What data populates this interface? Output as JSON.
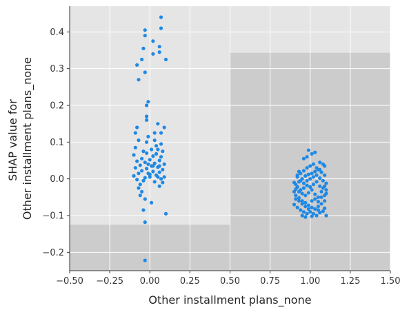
{
  "chart_data": {
    "type": "scatter",
    "title": "",
    "xlabel": "Other installment plans_none",
    "ylabel_lines": [
      "SHAP value for",
      "Other installment plans_none"
    ],
    "xlim": [
      -0.5,
      1.5
    ],
    "ylim": [
      -0.25,
      0.47
    ],
    "xticks": [
      -0.5,
      -0.25,
      0.0,
      0.25,
      0.5,
      0.75,
      1.0,
      1.25,
      1.5
    ],
    "xtick_labels": [
      "−0.50",
      "−0.25",
      "0.00",
      "0.25",
      "0.50",
      "0.75",
      "1.00",
      "1.25",
      "1.50"
    ],
    "yticks": [
      -0.2,
      -0.1,
      0.0,
      0.1,
      0.2,
      0.3,
      0.4
    ],
    "ytick_labels": [
      "−0.2",
      "−0.1",
      "0.0",
      "0.1",
      "0.2",
      "0.3",
      "0.4"
    ],
    "grid": true,
    "background_regions": [
      {
        "x": [
          -0.5,
          0.5
        ],
        "y": [
          -0.25,
          -0.125
        ],
        "shade": "dark"
      },
      {
        "x": [
          0.5,
          1.5
        ],
        "y": [
          -0.25,
          0.343
        ],
        "shade": "dark"
      }
    ],
    "colors": {
      "points": "#1e88e5",
      "panel": "#e5e5e5",
      "dark_region": "#cccccc",
      "grid": "#ffffff",
      "axis": "#333333"
    },
    "series": [
      {
        "values": [
          [
            -0.03,
            0.405
          ],
          [
            0.07,
            0.44
          ],
          [
            -0.03,
            0.39
          ],
          [
            0.07,
            0.41
          ],
          [
            0.02,
            0.375
          ],
          [
            0.06,
            0.36
          ],
          [
            -0.04,
            0.355
          ],
          [
            0.06,
            0.345
          ],
          [
            0.02,
            0.34
          ],
          [
            -0.05,
            0.325
          ],
          [
            0.1,
            0.325
          ],
          [
            -0.08,
            0.31
          ],
          [
            -0.03,
            0.29
          ],
          [
            -0.07,
            0.27
          ],
          [
            -0.01,
            0.21
          ],
          [
            -0.02,
            0.2
          ],
          [
            -0.02,
            0.17
          ],
          [
            -0.02,
            0.16
          ],
          [
            0.05,
            0.15
          ],
          [
            -0.08,
            0.14
          ],
          [
            0.09,
            0.14
          ],
          [
            -0.09,
            0.125
          ],
          [
            0.03,
            0.125
          ],
          [
            0.07,
            0.125
          ],
          [
            -0.01,
            0.115
          ],
          [
            -0.07,
            0.105
          ],
          [
            -0.02,
            0.1
          ],
          [
            0.07,
            0.095
          ],
          [
            0.04,
            0.09
          ],
          [
            -0.09,
            0.085
          ],
          [
            0.01,
            0.08
          ],
          [
            0.05,
            0.08
          ],
          [
            0.08,
            0.075
          ],
          [
            -0.02,
            0.07
          ],
          [
            0.04,
            0.068
          ],
          [
            -0.1,
            0.065
          ],
          [
            0.02,
            0.062
          ],
          [
            0.07,
            0.06
          ],
          [
            -0.05,
            0.055
          ],
          [
            0.0,
            0.052
          ],
          [
            0.06,
            0.05
          ],
          [
            -0.08,
            0.048
          ],
          [
            -0.03,
            0.045
          ],
          [
            0.03,
            0.042
          ],
          [
            0.09,
            0.04
          ],
          [
            -0.06,
            0.037
          ],
          [
            0.01,
            0.035
          ],
          [
            0.05,
            0.032
          ],
          [
            -0.09,
            0.03
          ],
          [
            -0.02,
            0.028
          ],
          [
            0.08,
            0.025
          ],
          [
            -0.05,
            0.022
          ],
          [
            0.02,
            0.02
          ],
          [
            0.06,
            0.018
          ],
          [
            -0.07,
            0.015
          ],
          [
            0.0,
            0.012
          ],
          [
            0.04,
            0.01
          ],
          [
            -0.1,
            0.008
          ],
          [
            0.09,
            0.005
          ],
          [
            -0.03,
            0.003
          ],
          [
            0.07,
            0.0
          ],
          [
            -0.08,
            -0.002
          ],
          [
            -0.04,
            -0.005
          ],
          [
            0.03,
            -0.008
          ],
          [
            0.08,
            -0.01
          ],
          [
            -0.06,
            -0.015
          ],
          [
            0.06,
            -0.02
          ],
          [
            -0.07,
            -0.025
          ],
          [
            -0.05,
            -0.035
          ],
          [
            -0.06,
            -0.045
          ],
          [
            -0.03,
            -0.055
          ],
          [
            0.01,
            -0.065
          ],
          [
            -0.04,
            -0.085
          ],
          [
            0.1,
            -0.095
          ],
          [
            -0.03,
            -0.118
          ],
          [
            -0.03,
            -0.222
          ],
          [
            0.0,
            0.005
          ],
          [
            0.02,
            0.035
          ],
          [
            -0.01,
            0.04
          ],
          [
            0.05,
            0.005
          ],
          [
            -0.04,
            0.075
          ],
          [
            0.03,
            0.105
          ],
          [
            0.06,
            0.035
          ],
          [
            -0.01,
            0.015
          ]
        ]
      },
      {
        "values": [
          [
            0.96,
            0.055
          ],
          [
            0.98,
            0.06
          ],
          [
            1.01,
            0.068
          ],
          [
            0.99,
            0.078
          ],
          [
            1.03,
            0.072
          ],
          [
            1.06,
            0.045
          ],
          [
            1.08,
            0.04
          ],
          [
            1.09,
            0.035
          ],
          [
            0.93,
            0.02
          ],
          [
            0.92,
            0.005
          ],
          [
            0.94,
            -0.005
          ],
          [
            0.96,
            -0.012
          ],
          [
            0.98,
            -0.018
          ],
          [
            1.0,
            -0.022
          ],
          [
            1.02,
            -0.015
          ],
          [
            1.04,
            -0.008
          ],
          [
            1.06,
            -0.02
          ],
          [
            1.08,
            -0.025
          ],
          [
            1.1,
            -0.03
          ],
          [
            0.91,
            -0.028
          ],
          [
            0.93,
            -0.035
          ],
          [
            0.95,
            -0.04
          ],
          [
            0.97,
            -0.045
          ],
          [
            0.99,
            -0.038
          ],
          [
            1.01,
            -0.03
          ],
          [
            1.03,
            -0.042
          ],
          [
            1.05,
            -0.05
          ],
          [
            1.07,
            -0.035
          ],
          [
            1.09,
            -0.02
          ],
          [
            0.9,
            -0.01
          ],
          [
            0.92,
            -0.022
          ],
          [
            0.94,
            -0.03
          ],
          [
            0.96,
            -0.025
          ],
          [
            0.98,
            -0.005
          ],
          [
            1.0,
            0.0
          ],
          [
            1.02,
            0.005
          ],
          [
            1.04,
            0.01
          ],
          [
            1.06,
            0.002
          ],
          [
            1.08,
            -0.005
          ],
          [
            1.1,
            -0.012
          ],
          [
            0.91,
            -0.045
          ],
          [
            0.93,
            -0.052
          ],
          [
            0.95,
            -0.06
          ],
          [
            0.97,
            -0.065
          ],
          [
            0.99,
            -0.072
          ],
          [
            1.01,
            -0.078
          ],
          [
            1.03,
            -0.082
          ],
          [
            1.05,
            -0.075
          ],
          [
            1.07,
            -0.068
          ],
          [
            1.09,
            -0.06
          ],
          [
            0.9,
            -0.07
          ],
          [
            0.92,
            -0.078
          ],
          [
            0.94,
            -0.085
          ],
          [
            0.96,
            -0.09
          ],
          [
            0.98,
            -0.095
          ],
          [
            1.0,
            -0.09
          ],
          [
            1.02,
            -0.095
          ],
          [
            1.04,
            -0.1
          ],
          [
            1.06,
            -0.092
          ],
          [
            1.08,
            -0.088
          ],
          [
            1.1,
            -0.1
          ],
          [
            0.95,
            -0.1
          ],
          [
            0.97,
            -0.104
          ],
          [
            1.01,
            -0.102
          ],
          [
            1.05,
            -0.085
          ],
          [
            1.09,
            -0.08
          ],
          [
            0.91,
            -0.015
          ],
          [
            0.93,
            -0.008
          ],
          [
            0.95,
            0.0
          ],
          [
            0.97,
            0.008
          ],
          [
            0.99,
            0.012
          ],
          [
            1.01,
            0.015
          ],
          [
            1.03,
            0.02
          ],
          [
            1.05,
            0.025
          ],
          [
            1.07,
            0.018
          ],
          [
            1.09,
            0.01
          ],
          [
            0.92,
            0.01
          ],
          [
            0.94,
            0.015
          ],
          [
            0.96,
            0.022
          ],
          [
            0.98,
            0.03
          ],
          [
            1.0,
            0.035
          ],
          [
            1.02,
            0.04
          ],
          [
            1.04,
            0.03
          ],
          [
            1.06,
            0.025
          ],
          [
            0.91,
            -0.055
          ],
          [
            0.93,
            -0.06
          ],
          [
            0.95,
            -0.068
          ],
          [
            0.97,
            -0.075
          ],
          [
            0.99,
            -0.082
          ],
          [
            1.01,
            -0.06
          ],
          [
            1.03,
            -0.055
          ],
          [
            1.05,
            -0.062
          ],
          [
            1.07,
            -0.05
          ],
          [
            1.09,
            -0.045
          ],
          [
            1.1,
            -0.04
          ],
          [
            0.9,
            -0.035
          ]
        ]
      }
    ]
  }
}
